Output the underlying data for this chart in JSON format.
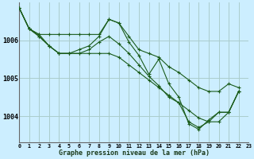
{
  "title": "Graphe pression niveau de la mer (hPa)",
  "background_color": "#cceeff",
  "grid_color": "#aacccc",
  "line_color": "#1a5c1a",
  "marker_color": "#1a5c1a",
  "x_labels": [
    "0",
    "1",
    "2",
    "3",
    "4",
    "5",
    "6",
    "7",
    "8",
    "9",
    "10",
    "11",
    "12",
    "13",
    "14",
    "15",
    "16",
    "17",
    "18",
    "19",
    "20",
    "21",
    "22",
    "23"
  ],
  "y_ticks": [
    1004,
    1005,
    1006
  ],
  "ylim": [
    1003.3,
    1007.0
  ],
  "xlim": [
    0,
    23
  ],
  "series": [
    [
      1006.85,
      1006.3,
      1006.15,
      1006.15,
      1006.15,
      1006.15,
      1006.15,
      1006.15,
      1006.15,
      1006.55,
      1006.45,
      1006.1,
      1005.75,
      1005.65,
      1005.55,
      1005.3,
      1005.15,
      1004.95,
      1004.75,
      1004.65,
      1004.65,
      1004.85,
      1004.75,
      null
    ],
    [
      1006.85,
      1006.3,
      1006.15,
      1005.85,
      1005.65,
      1005.65,
      1005.75,
      1005.85,
      1006.1,
      1006.55,
      1006.45,
      1005.95,
      1005.6,
      1005.1,
      1005.5,
      1004.85,
      1004.5,
      1003.8,
      1003.65,
      1003.9,
      1004.1,
      1004.1,
      1004.65,
      null
    ],
    [
      1006.85,
      1006.3,
      1006.1,
      1005.85,
      1005.65,
      1005.65,
      1005.65,
      1005.75,
      1005.95,
      1006.1,
      1005.9,
      1005.65,
      1005.35,
      1005.05,
      1004.8,
      1004.5,
      1004.35,
      1003.85,
      1003.7,
      1003.85,
      1004.1,
      1004.1,
      1004.65,
      null
    ],
    [
      1006.85,
      1006.3,
      1006.1,
      1005.85,
      1005.65,
      1005.65,
      1005.65,
      1005.65,
      1005.65,
      1005.65,
      1005.55,
      1005.35,
      1005.15,
      1004.95,
      1004.75,
      1004.55,
      1004.35,
      1004.15,
      1003.95,
      1003.85,
      1003.85,
      1004.1,
      1004.65,
      null
    ]
  ]
}
